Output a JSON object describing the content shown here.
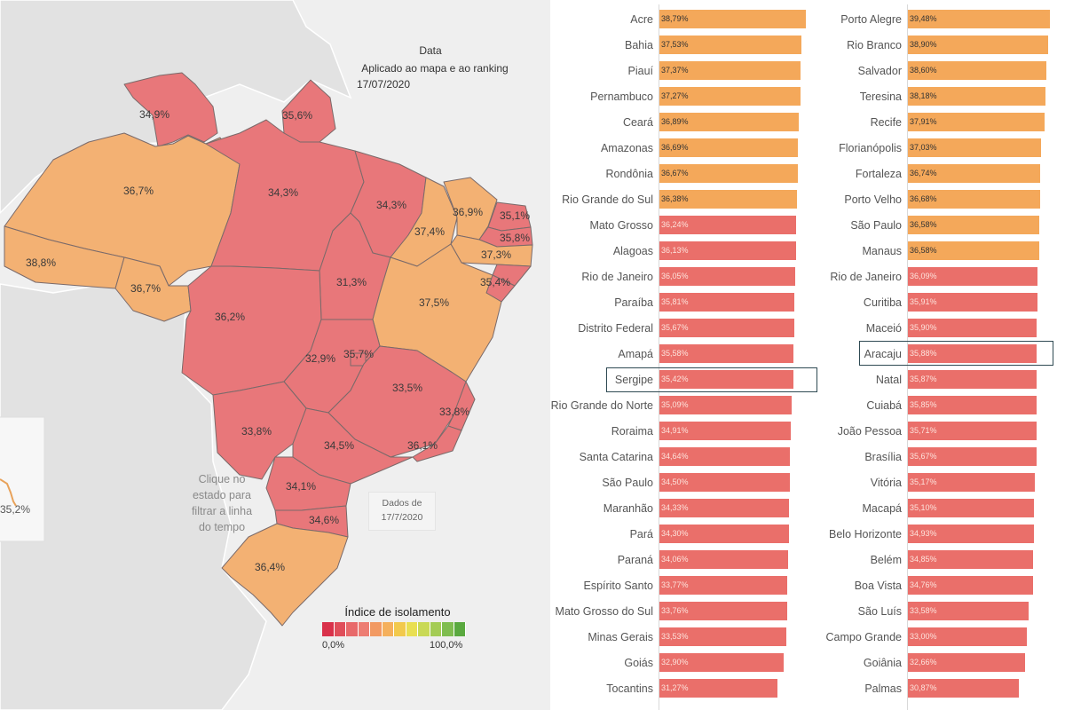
{
  "header": {
    "title": "Data",
    "subtitle": "Aplicado ao mapa e ao ranking",
    "date": "17/07/2020"
  },
  "hint": {
    "line1": "Clique no",
    "line2": "estado para",
    "line3": "filtrar a linha",
    "line4": "do tempo"
  },
  "dados_box": {
    "line1": "Dados de",
    "line2": "17/7/2020"
  },
  "timeline_value": "35,2%",
  "legend": {
    "title": "Índice de isolamento",
    "min": "0,0%",
    "max": "100,0%",
    "colors": [
      "#d9314a",
      "#e04e5a",
      "#e8696a",
      "#ed7d73",
      "#f29a63",
      "#f5b05c",
      "#f2c94c",
      "#e9df52",
      "#c9d955",
      "#a4cc55",
      "#7fbd4f",
      "#5aa93f"
    ]
  },
  "map_labels": [
    {
      "name": "Roraima",
      "value": "34,9%"
    },
    {
      "name": "Amapá",
      "value": "35,6%"
    },
    {
      "name": "Amazonas",
      "value": "36,7%"
    },
    {
      "name": "Pará",
      "value": "34,3%"
    },
    {
      "name": "Maranhão",
      "value": "34,3%"
    },
    {
      "name": "Ceará",
      "value": "36,9%"
    },
    {
      "name": "Rio Grande do Norte",
      "value": "35,1%"
    },
    {
      "name": "Piauí",
      "value": "37,4%"
    },
    {
      "name": "Paraíba",
      "value": "35,8%"
    },
    {
      "name": "Pernambuco",
      "value": "37,3%"
    },
    {
      "name": "Acre",
      "value": "38,8%"
    },
    {
      "name": "Rondônia",
      "value": "36,7%"
    },
    {
      "name": "Tocantins",
      "value": "31,3%"
    },
    {
      "name": "Sergipe",
      "value": "35,4%"
    },
    {
      "name": "Bahia",
      "value": "37,5%"
    },
    {
      "name": "Mato Grosso",
      "value": "36,2%"
    },
    {
      "name": "Goiás",
      "value": "32,9%"
    },
    {
      "name": "Distrito Federal",
      "value": "35,7%"
    },
    {
      "name": "Minas Gerais",
      "value": "33,5%"
    },
    {
      "name": "Espírito Santo",
      "value": "33,8%"
    },
    {
      "name": "Mato Grosso do Sul",
      "value": "33,8%"
    },
    {
      "name": "São Paulo",
      "value": "34,5%"
    },
    {
      "name": "Rio de Janeiro",
      "value": "36,1%"
    },
    {
      "name": "Paraná",
      "value": "34,1%"
    },
    {
      "name": "Santa Catarina",
      "value": "34,6%"
    },
    {
      "name": "Rio Grande do Sul",
      "value": "36,4%"
    }
  ],
  "states_ranking": [
    {
      "name": "Acre",
      "value": 38.79,
      "label": "38,79%"
    },
    {
      "name": "Bahia",
      "value": 37.53,
      "label": "37,53%"
    },
    {
      "name": "Piauí",
      "value": 37.37,
      "label": "37,37%"
    },
    {
      "name": "Pernambuco",
      "value": 37.27,
      "label": "37,27%"
    },
    {
      "name": "Ceará",
      "value": 36.89,
      "label": "36,89%"
    },
    {
      "name": "Amazonas",
      "value": 36.69,
      "label": "36,69%"
    },
    {
      "name": "Rondônia",
      "value": 36.67,
      "label": "36,67%"
    },
    {
      "name": "Rio Grande do Sul",
      "value": 36.38,
      "label": "36,38%"
    },
    {
      "name": "Mato Grosso",
      "value": 36.24,
      "label": "36,24%"
    },
    {
      "name": "Alagoas",
      "value": 36.13,
      "label": "36,13%"
    },
    {
      "name": "Rio de Janeiro",
      "value": 36.05,
      "label": "36,05%"
    },
    {
      "name": "Paraíba",
      "value": 35.81,
      "label": "35,81%"
    },
    {
      "name": "Distrito Federal",
      "value": 35.67,
      "label": "35,67%"
    },
    {
      "name": "Amapá",
      "value": 35.58,
      "label": "35,58%"
    },
    {
      "name": "Sergipe",
      "value": 35.42,
      "label": "35,42%"
    },
    {
      "name": "Rio Grande do Norte",
      "value": 35.09,
      "label": "35,09%"
    },
    {
      "name": "Roraima",
      "value": 34.91,
      "label": "34,91%"
    },
    {
      "name": "Santa Catarina",
      "value": 34.64,
      "label": "34,64%"
    },
    {
      "name": "São Paulo",
      "value": 34.5,
      "label": "34,50%"
    },
    {
      "name": "Maranhão",
      "value": 34.33,
      "label": "34,33%"
    },
    {
      "name": "Pará",
      "value": 34.3,
      "label": "34,30%"
    },
    {
      "name": "Paraná",
      "value": 34.06,
      "label": "34,06%"
    },
    {
      "name": "Espírito Santo",
      "value": 33.77,
      "label": "33,77%"
    },
    {
      "name": "Mato Grosso do Sul",
      "value": 33.76,
      "label": "33,76%"
    },
    {
      "name": "Minas Gerais",
      "value": 33.53,
      "label": "33,53%"
    },
    {
      "name": "Goiás",
      "value": 32.9,
      "label": "32,90%"
    },
    {
      "name": "Tocantins",
      "value": 31.27,
      "label": "31,27%"
    }
  ],
  "capitals_ranking": [
    {
      "name": "Porto Alegre",
      "value": 39.48,
      "label": "39,48%"
    },
    {
      "name": "Rio Branco",
      "value": 38.9,
      "label": "38,90%"
    },
    {
      "name": "Salvador",
      "value": 38.6,
      "label": "38,60%"
    },
    {
      "name": "Teresina",
      "value": 38.18,
      "label": "38,18%"
    },
    {
      "name": "Recife",
      "value": 37.91,
      "label": "37,91%"
    },
    {
      "name": "Florianópolis",
      "value": 37.03,
      "label": "37,03%"
    },
    {
      "name": "Fortaleza",
      "value": 36.74,
      "label": "36,74%"
    },
    {
      "name": "Porto Velho",
      "value": 36.68,
      "label": "36,68%"
    },
    {
      "name": "São Paulo",
      "value": 36.58,
      "label": "36,58%"
    },
    {
      "name": "Manaus",
      "value": 36.58,
      "label": "36,58%"
    },
    {
      "name": "Rio de Janeiro",
      "value": 36.09,
      "label": "36,09%"
    },
    {
      "name": "Curitiba",
      "value": 35.91,
      "label": "35,91%"
    },
    {
      "name": "Maceió",
      "value": 35.9,
      "label": "35,90%"
    },
    {
      "name": "Aracaju",
      "value": 35.88,
      "label": "35,88%"
    },
    {
      "name": "Natal",
      "value": 35.87,
      "label": "35,87%"
    },
    {
      "name": "Cuiabá",
      "value": 35.85,
      "label": "35,85%"
    },
    {
      "name": "João Pessoa",
      "value": 35.71,
      "label": "35,71%"
    },
    {
      "name": "Brasília",
      "value": 35.67,
      "label": "35,67%"
    },
    {
      "name": "Vitória",
      "value": 35.17,
      "label": "35,17%"
    },
    {
      "name": "Macapá",
      "value": 35.1,
      "label": "35,10%"
    },
    {
      "name": "Belo Horizonte",
      "value": 34.93,
      "label": "34,93%"
    },
    {
      "name": "Belém",
      "value": 34.85,
      "label": "34,85%"
    },
    {
      "name": "Boa Vista",
      "value": 34.76,
      "label": "34,76%"
    },
    {
      "name": "São Luís",
      "value": 33.58,
      "label": "33,58%"
    },
    {
      "name": "Campo Grande",
      "value": 33.0,
      "label": "33,00%"
    },
    {
      "name": "Goiânia",
      "value": 32.66,
      "label": "32,66%"
    },
    {
      "name": "Palmas",
      "value": 30.87,
      "label": "30,87%"
    }
  ],
  "highlighted": {
    "state": "Sergipe",
    "capital": "Aracaju"
  },
  "colors": {
    "orange": "#f4a85a",
    "red": "#ea6f6a",
    "map_orange": "#f3b173",
    "map_red": "#e8777a",
    "land": "#e3e3e3",
    "water": "#f0f0f0",
    "highlight_border": "#2f4a53"
  }
}
